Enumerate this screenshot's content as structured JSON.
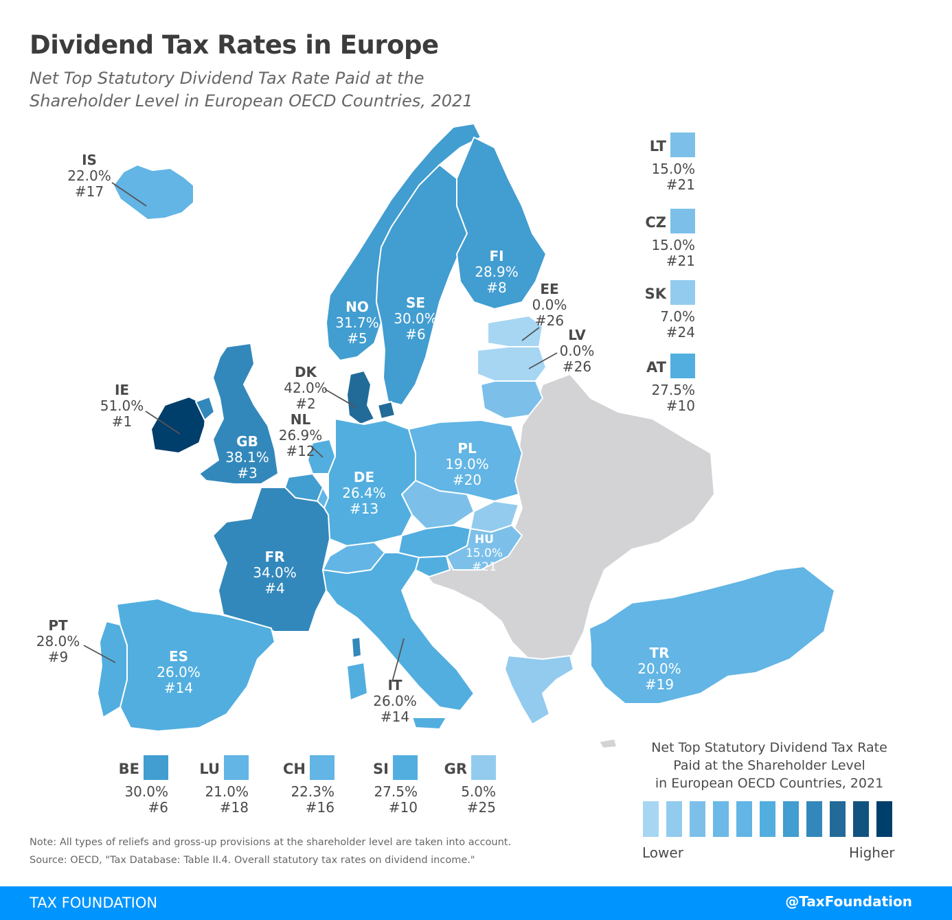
{
  "header": {
    "title": "Dividend Tax Rates in Europe",
    "subtitle_line1": "Net Top Statutory Dividend Tax Rate Paid at the",
    "subtitle_line2": "Shareholder Level in European OECD Countries, 2021"
  },
  "colors": {
    "c0": "#a7d6f3",
    "c1": "#93cbee",
    "c2": "#7cc0ea",
    "c3": "#6cb8e6",
    "c4": "#62b5e4",
    "c5": "#52aedf",
    "c6": "#429dd0",
    "c7": "#3388bb",
    "c8": "#226b99",
    "c9": "#11537f",
    "c10": "#003e6b",
    "non_oecd": "#d3d3d5"
  },
  "countries": {
    "IS": {
      "code": "IS",
      "rate": "22.0%",
      "rank": "#17"
    },
    "NO": {
      "code": "NO",
      "rate": "31.7%",
      "rank": "#5"
    },
    "SE": {
      "code": "SE",
      "rate": "30.0%",
      "rank": "#6"
    },
    "FI": {
      "code": "FI",
      "rate": "28.9%",
      "rank": "#8"
    },
    "EE": {
      "code": "EE",
      "rate": "0.0%",
      "rank": "#26"
    },
    "LV": {
      "code": "LV",
      "rate": "0.0%",
      "rank": "#26"
    },
    "DK": {
      "code": "DK",
      "rate": "42.0%",
      "rank": "#2"
    },
    "IE": {
      "code": "IE",
      "rate": "51.0%",
      "rank": "#1"
    },
    "GB": {
      "code": "GB",
      "rate": "38.1%",
      "rank": "#3"
    },
    "NL": {
      "code": "NL",
      "rate": "26.9%",
      "rank": "#12"
    },
    "DE": {
      "code": "DE",
      "rate": "26.4%",
      "rank": "#13"
    },
    "PL": {
      "code": "PL",
      "rate": "19.0%",
      "rank": "#20"
    },
    "HU": {
      "code": "HU",
      "rate": "15.0%",
      "rank": "#21"
    },
    "FR": {
      "code": "FR",
      "rate": "34.0%",
      "rank": "#4"
    },
    "PT": {
      "code": "PT",
      "rate": "28.0%",
      "rank": "#9"
    },
    "ES": {
      "code": "ES",
      "rate": "26.0%",
      "rank": "#14"
    },
    "IT": {
      "code": "IT",
      "rate": "26.0%",
      "rank": "#14"
    },
    "TR": {
      "code": "TR",
      "rate": "20.0%",
      "rank": "#19"
    }
  },
  "side_legend": [
    {
      "code": "LT",
      "rate": "15.0%",
      "rank": "#21"
    },
    {
      "code": "CZ",
      "rate": "15.0%",
      "rank": "#21"
    },
    {
      "code": "SK",
      "rate": "7.0%",
      "rank": "#24"
    },
    {
      "code": "AT",
      "rate": "27.5%",
      "rank": "#10"
    }
  ],
  "bottom_legend": [
    {
      "code": "BE",
      "rate": "30.0%",
      "rank": "#6"
    },
    {
      "code": "LU",
      "rate": "21.0%",
      "rank": "#18"
    },
    {
      "code": "CH",
      "rate": "22.3%",
      "rank": "#16"
    },
    {
      "code": "SI",
      "rate": "27.5%",
      "rank": "#10"
    },
    {
      "code": "GR",
      "rate": "5.0%",
      "rank": "#25"
    }
  ],
  "scale_legend": {
    "title_line1": "Net Top Statutory Dividend Tax Rate",
    "title_line2": "Paid at the Shareholder Level",
    "title_line3": "in European OECD Countries, 2021",
    "low_label": "Lower",
    "high_label": "Higher"
  },
  "notes": {
    "note": "Note: All types of reliefs and gross-up provisions at the shareholder level are taken into account.",
    "source": "Source: OECD, \"Tax Database: Table II.4. Overall statutory tax rates on dividend income.\""
  },
  "footer": {
    "brand": "TAX FOUNDATION",
    "handle": "@TaxFoundation"
  }
}
